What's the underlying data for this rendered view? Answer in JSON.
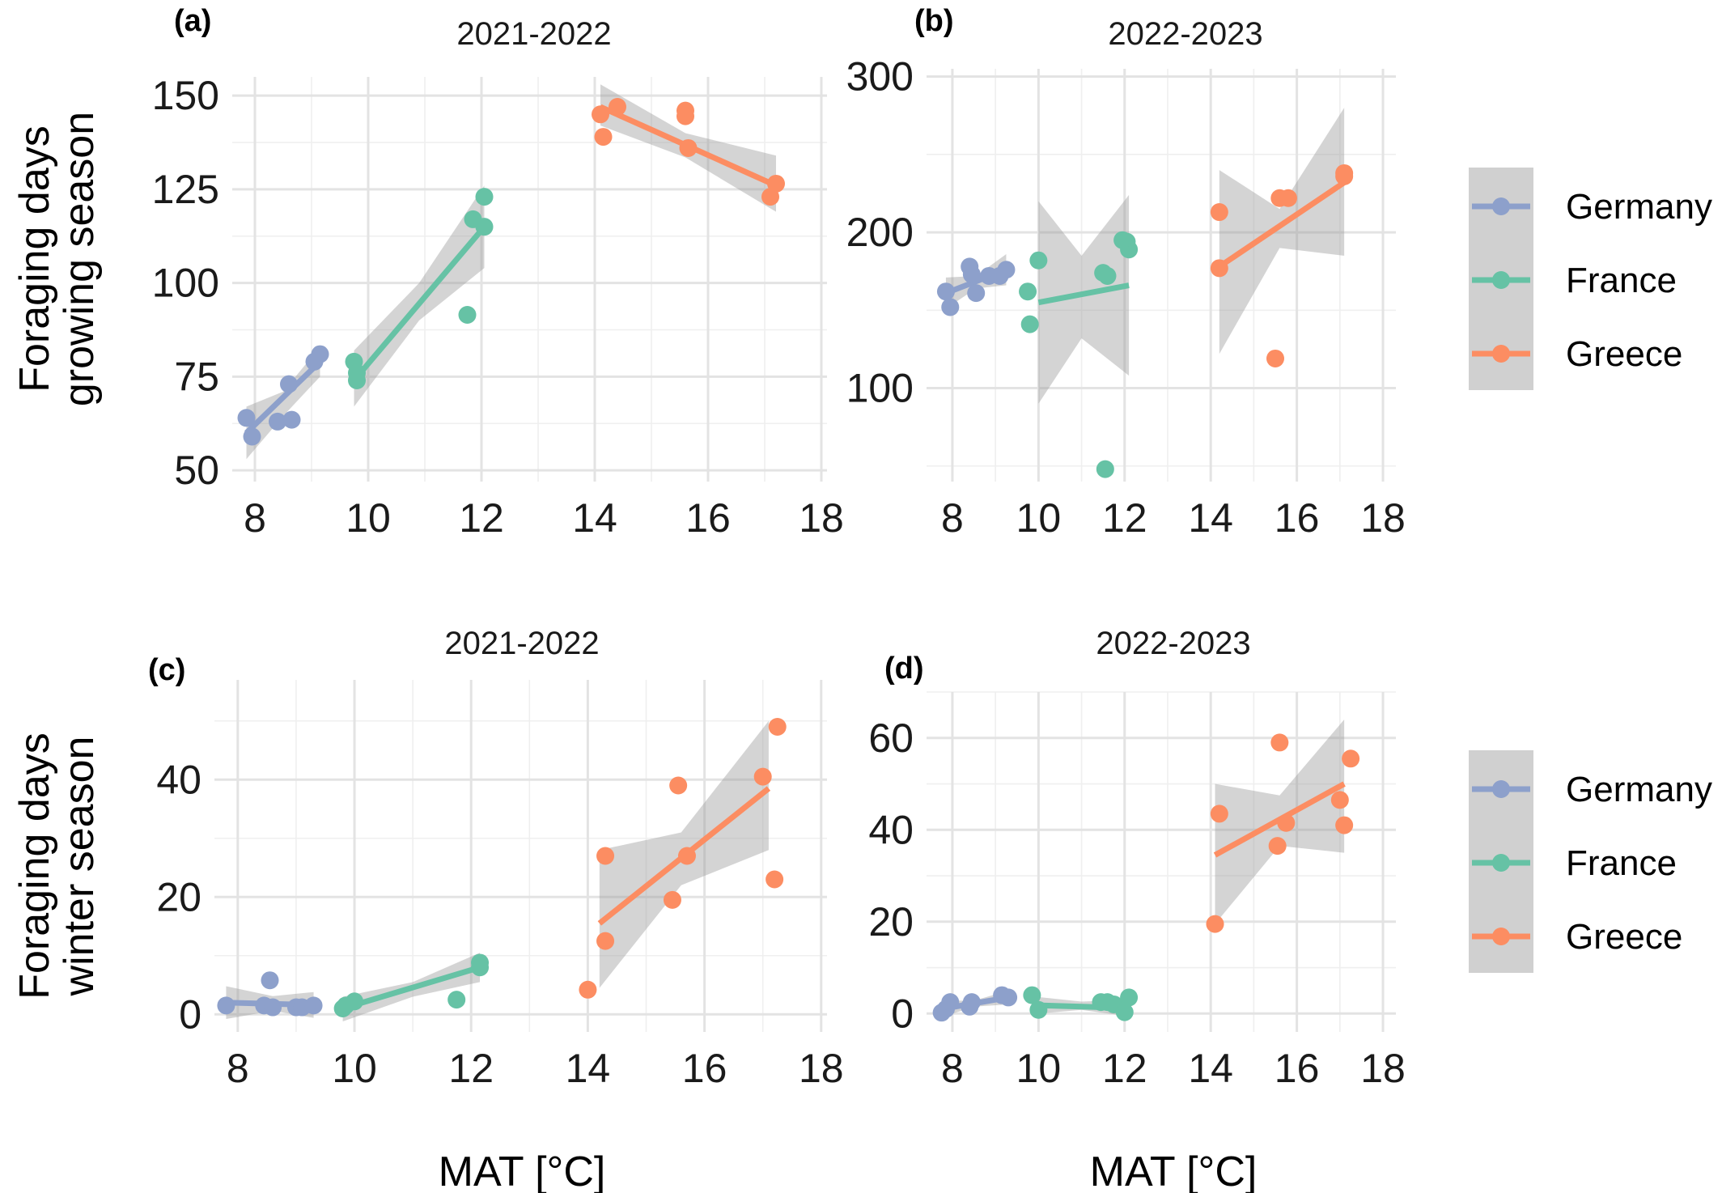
{
  "figure": {
    "y_label_top": [
      "Foraging days",
      "growing season"
    ],
    "y_label_bottom": [
      "Foraging days",
      "winter season"
    ],
    "x_label": "MAT [°C]"
  },
  "legend": {
    "entries": [
      {
        "name": "Germany",
        "color": "#8DA0CB"
      },
      {
        "name": "France",
        "color": "#66C2A5"
      },
      {
        "name": "Greece",
        "color": "#FC8D62"
      }
    ],
    "ribbon_color": "#d0d0d0"
  },
  "chart_data": [
    {
      "panel": "(a)",
      "type": "scatter",
      "title": "2021-2022",
      "xlim": [
        7.6,
        18.1
      ],
      "ylim": [
        47,
        155
      ],
      "xticks": [
        8,
        10,
        12,
        14,
        16,
        18
      ],
      "yticks": [
        50,
        75,
        100,
        125,
        150
      ],
      "grid": true,
      "series": [
        {
          "name": "Germany",
          "color": "#8DA0CB",
          "points": [
            [
              7.85,
              64
            ],
            [
              7.95,
              59
            ],
            [
              8.4,
              63
            ],
            [
              8.6,
              73
            ],
            [
              8.65,
              63.5
            ],
            [
              9.05,
              79
            ],
            [
              9.15,
              81
            ]
          ],
          "fit": [
            [
              7.85,
              60
            ],
            [
              9.15,
              79
            ]
          ],
          "ribbon": [
            [
              7.85,
              53,
              67
            ],
            [
              8.5,
              64.5,
              71
            ],
            [
              9.15,
              75,
              83
            ]
          ]
        },
        {
          "name": "France",
          "color": "#66C2A5",
          "points": [
            [
              9.75,
              79
            ],
            [
              9.8,
              76
            ],
            [
              9.8,
              74
            ],
            [
              11.75,
              91.5
            ],
            [
              11.85,
              117
            ],
            [
              12.05,
              123
            ],
            [
              12.05,
              115
            ]
          ],
          "fit": [
            [
              9.75,
              74
            ],
            [
              12.05,
              115
            ]
          ],
          "ribbon": [
            [
              9.75,
              67,
              82
            ],
            [
              10.9,
              90,
              100
            ],
            [
              12.05,
              104,
              126
            ]
          ]
        },
        {
          "name": "Greece",
          "color": "#FC8D62",
          "points": [
            [
              14.1,
              145
            ],
            [
              14.15,
              139
            ],
            [
              14.4,
              147
            ],
            [
              15.6,
              146
            ],
            [
              15.6,
              144.5
            ],
            [
              15.65,
              136
            ],
            [
              17.1,
              123
            ],
            [
              17.2,
              126.5
            ]
          ],
          "fit": [
            [
              14.1,
              147
            ],
            [
              17.2,
              126
            ]
          ],
          "ribbon": [
            [
              14.1,
              142,
              153
            ],
            [
              15.6,
              133.5,
              140
            ],
            [
              17.2,
              119,
              134
            ]
          ]
        }
      ]
    },
    {
      "panel": "(b)",
      "type": "scatter",
      "title": "2022-2023",
      "xlim": [
        7.4,
        18.3
      ],
      "ylim": [
        40,
        305
      ],
      "xticks": [
        8,
        10,
        12,
        14,
        16,
        18
      ],
      "yticks": [
        100,
        200,
        300
      ],
      "grid": true,
      "series": [
        {
          "name": "Germany",
          "color": "#8DA0CB",
          "points": [
            [
              7.85,
              162
            ],
            [
              7.95,
              152
            ],
            [
              8.4,
              178
            ],
            [
              8.45,
              173
            ],
            [
              8.55,
              161
            ],
            [
              8.85,
              172
            ],
            [
              9.25,
              176
            ],
            [
              9.1,
              172
            ]
          ],
          "fit": [
            [
              7.85,
              161
            ],
            [
              9.25,
              176
            ]
          ],
          "ribbon": [
            [
              7.85,
              151,
              171
            ],
            [
              8.55,
              164,
              172
            ],
            [
              9.25,
              166,
              186
            ]
          ]
        },
        {
          "name": "France",
          "color": "#66C2A5",
          "points": [
            [
              9.75,
              162
            ],
            [
              9.8,
              141
            ],
            [
              10.0,
              182
            ],
            [
              11.5,
              174
            ],
            [
              11.55,
              48
            ],
            [
              11.6,
              172
            ],
            [
              12.05,
              194
            ],
            [
              12.1,
              189
            ],
            [
              11.95,
              195
            ]
          ],
          "fit": [
            [
              10.0,
              155
            ],
            [
              12.1,
              166
            ]
          ],
          "ribbon": [
            [
              10.0,
              90,
              220
            ],
            [
              11.0,
              132,
              185
            ],
            [
              12.1,
              108,
              224
            ]
          ]
        },
        {
          "name": "Greece",
          "color": "#FC8D62",
          "points": [
            [
              14.2,
              213
            ],
            [
              14.2,
              177
            ],
            [
              15.5,
              119
            ],
            [
              15.6,
              222
            ],
            [
              15.8,
              222
            ],
            [
              17.1,
              238
            ],
            [
              17.1,
              236
            ]
          ],
          "fit": [
            [
              14.2,
              178
            ],
            [
              17.1,
              232
            ]
          ],
          "ribbon": [
            [
              14.2,
              122,
              240
            ],
            [
              15.6,
              190,
              215
            ],
            [
              17.1,
              185,
              280
            ]
          ]
        }
      ]
    },
    {
      "panel": "(c)",
      "type": "scatter",
      "title": "2021-2022",
      "xlim": [
        7.6,
        18.1
      ],
      "ylim": [
        -3,
        57
      ],
      "xticks": [
        8,
        10,
        12,
        14,
        16,
        18
      ],
      "yticks": [
        0,
        20,
        40
      ],
      "grid": true,
      "series": [
        {
          "name": "Germany",
          "color": "#8DA0CB",
          "points": [
            [
              7.8,
              1.5
            ],
            [
              8.45,
              1.5
            ],
            [
              8.55,
              5.8
            ],
            [
              8.6,
              1.2
            ],
            [
              9.0,
              1.2
            ],
            [
              9.1,
              1.2
            ],
            [
              9.3,
              1.5
            ]
          ],
          "fit": [
            [
              7.8,
              2.0
            ],
            [
              9.3,
              1.6
            ]
          ],
          "ribbon": [
            [
              7.8,
              -0.8,
              4.8
            ],
            [
              8.6,
              0.6,
              3.1
            ],
            [
              9.3,
              -0.6,
              3.8
            ]
          ]
        },
        {
          "name": "France",
          "color": "#66C2A5",
          "points": [
            [
              9.8,
              1.0
            ],
            [
              9.85,
              1.5
            ],
            [
              10.0,
              2.2
            ],
            [
              11.75,
              2.5
            ],
            [
              12.15,
              8.8
            ],
            [
              12.15,
              8.0
            ]
          ],
          "fit": [
            [
              9.8,
              1.0
            ],
            [
              12.15,
              8.0
            ]
          ],
          "ribbon": [
            [
              9.8,
              -1.2,
              3.0
            ],
            [
              11.0,
              3.0,
              5.5
            ],
            [
              12.15,
              5.5,
              10.5
            ]
          ]
        },
        {
          "name": "Greece",
          "color": "#FC8D62",
          "points": [
            [
              14.0,
              4.2
            ],
            [
              14.3,
              27
            ],
            [
              14.3,
              12.5
            ],
            [
              15.45,
              19.5
            ],
            [
              15.55,
              39
            ],
            [
              15.7,
              27
            ],
            [
              17.0,
              40.5
            ],
            [
              17.2,
              23
            ],
            [
              17.25,
              49
            ]
          ],
          "fit": [
            [
              14.2,
              15.5
            ],
            [
              17.1,
              38.5
            ]
          ],
          "ribbon": [
            [
              14.2,
              4.5,
              28
            ],
            [
              15.6,
              22,
              31
            ],
            [
              17.1,
              28,
              50
            ]
          ]
        }
      ]
    },
    {
      "panel": "(d)",
      "type": "scatter",
      "title": "2022-2023",
      "xlim": [
        7.4,
        18.3
      ],
      "ylim": [
        -4,
        70
      ],
      "xticks": [
        8,
        10,
        12,
        14,
        16,
        18
      ],
      "yticks": [
        0,
        20,
        40,
        60
      ],
      "grid": true,
      "series": [
        {
          "name": "Germany",
          "color": "#8DA0CB",
          "points": [
            [
              7.75,
              0.2
            ],
            [
              7.85,
              1.0
            ],
            [
              7.95,
              2.5
            ],
            [
              8.4,
              1.5
            ],
            [
              8.45,
              2.5
            ],
            [
              9.15,
              4.0
            ],
            [
              9.3,
              3.5
            ]
          ],
          "fit": [
            [
              7.75,
              1.0
            ],
            [
              9.3,
              3.5
            ]
          ],
          "ribbon": [
            [
              7.75,
              -0.8,
              2.8
            ],
            [
              8.5,
              1.5,
              2.8
            ],
            [
              9.3,
              2.0,
              5.0
            ]
          ]
        },
        {
          "name": "France",
          "color": "#66C2A5",
          "points": [
            [
              9.85,
              4.0
            ],
            [
              10.0,
              0.8
            ],
            [
              11.45,
              2.5
            ],
            [
              11.6,
              2.5
            ],
            [
              11.75,
              2.0
            ],
            [
              12.0,
              0.3
            ],
            [
              12.1,
              3.5
            ]
          ],
          "fit": [
            [
              10.0,
              1.8
            ],
            [
              12.1,
              1.2
            ]
          ],
          "ribbon": [
            [
              10.0,
              0.0,
              3.6
            ],
            [
              11.0,
              0.8,
              2.6
            ],
            [
              12.1,
              -0.6,
              3.0
            ]
          ]
        },
        {
          "name": "Greece",
          "color": "#FC8D62",
          "points": [
            [
              14.1,
              19.5
            ],
            [
              14.2,
              43.5
            ],
            [
              15.55,
              36.5
            ],
            [
              15.6,
              59
            ],
            [
              15.75,
              41.5
            ],
            [
              17.0,
              46.5
            ],
            [
              17.1,
              41
            ],
            [
              17.25,
              55.5
            ]
          ],
          "fit": [
            [
              14.1,
              34.5
            ],
            [
              17.1,
              50
            ]
          ],
          "ribbon": [
            [
              14.1,
              19.5,
              50
            ],
            [
              15.6,
              36.5,
              47.5
            ],
            [
              17.1,
              35,
              64
            ]
          ]
        }
      ]
    }
  ]
}
